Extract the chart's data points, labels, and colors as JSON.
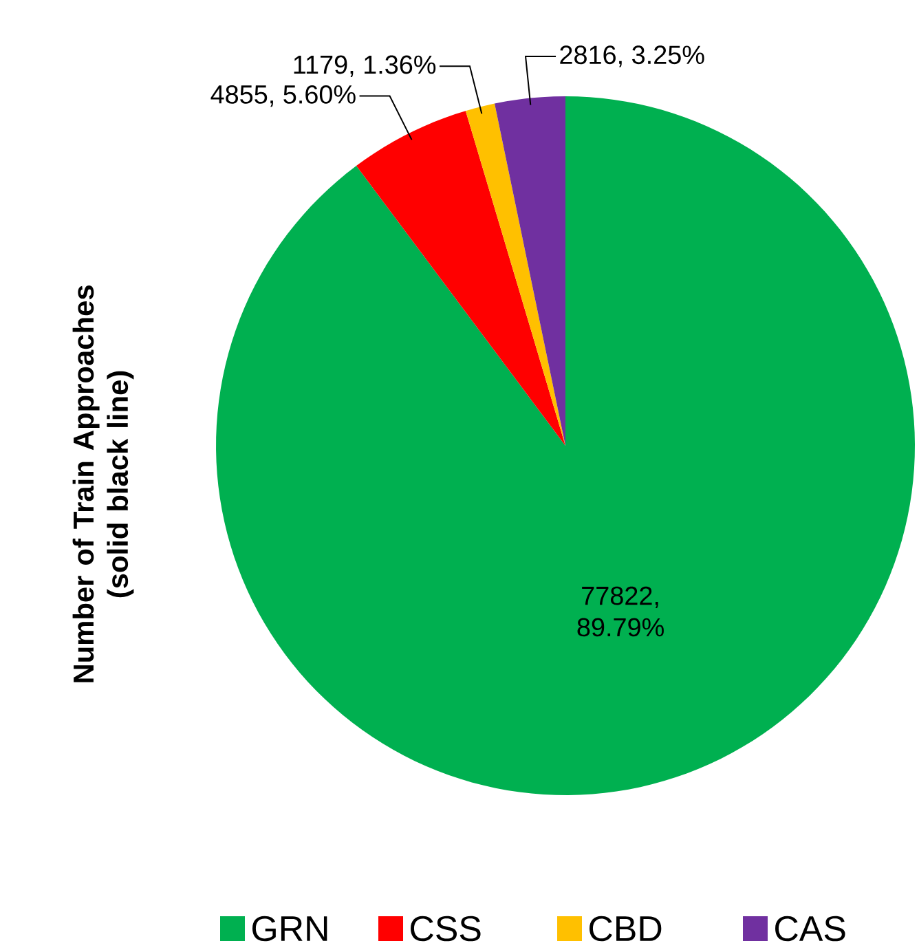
{
  "chart_data": {
    "type": "pie",
    "ylabel": "Number of Train Approaches (solid black line)",
    "categories": [
      "GRN",
      "CSS",
      "CBD",
      "CAS"
    ],
    "values": [
      77822,
      4855,
      1179,
      2816
    ],
    "colors": [
      "#00b050",
      "#ff0000",
      "#ffc000",
      "#7030a0"
    ],
    "value_labels": [
      "77822, 89.79%",
      "4855, 5.60%",
      "1179, 1.36%",
      "2816, 3.25%"
    ],
    "legend": "bottom"
  }
}
